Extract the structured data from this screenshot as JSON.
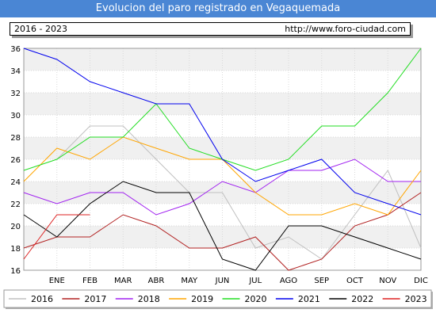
{
  "title": "Evolucion del paro registrado en Vegaquemada",
  "subtitle_left": "2016 - 2023",
  "subtitle_right": "http://www.foro-ciudad.com",
  "colors": {
    "title_bg": "#4a86d4",
    "band": "#f0f0f0",
    "grid": "#d9d9d9"
  },
  "chart_data": {
    "type": "line",
    "title": "Evolucion del paro registrado en Vegaquemada",
    "categories": [
      "",
      "ENE",
      "FEB",
      "MAR",
      "ABR",
      "MAY",
      "JUN",
      "JUL",
      "AGO",
      "SEP",
      "OCT",
      "NOV",
      "DIC"
    ],
    "ylim": [
      16,
      36
    ],
    "yticks": [
      16,
      18,
      20,
      22,
      24,
      26,
      28,
      30,
      32,
      34,
      36
    ],
    "grid": true,
    "legend_position": "bottom",
    "series": [
      {
        "name": "2016",
        "color": "#c0c0c0",
        "values": [
          null,
          26,
          29,
          29,
          26,
          23,
          23,
          18,
          19,
          17,
          21,
          25,
          18
        ]
      },
      {
        "name": "2017",
        "color": "#b22222",
        "values": [
          18,
          19,
          19,
          21,
          20,
          18,
          18,
          19,
          16,
          17,
          20,
          21,
          23
        ]
      },
      {
        "name": "2018",
        "color": "#a020f0",
        "values": [
          23,
          22,
          23,
          23,
          21,
          22,
          24,
          23,
          25,
          25,
          26,
          24,
          24
        ]
      },
      {
        "name": "2019",
        "color": "#ffa500",
        "values": [
          24,
          27,
          26,
          28,
          27,
          26,
          26,
          23,
          21,
          21,
          22,
          21,
          25
        ]
      },
      {
        "name": "2020",
        "color": "#22dd22",
        "values": [
          25,
          26,
          28,
          28,
          31,
          27,
          26,
          25,
          26,
          29,
          29,
          32,
          36
        ]
      },
      {
        "name": "2021",
        "color": "#0000ee",
        "values": [
          36,
          35,
          33,
          32,
          31,
          31,
          26,
          24,
          25,
          26,
          23,
          22,
          21
        ]
      },
      {
        "name": "2022",
        "color": "#000000",
        "values": [
          21,
          19,
          22,
          24,
          23,
          23,
          17,
          16,
          20,
          20,
          19,
          18,
          17
        ]
      },
      {
        "name": "2023",
        "color": "#dd2222",
        "values": [
          17,
          21,
          21,
          null,
          null,
          null,
          null,
          null,
          null,
          null,
          null,
          null,
          null
        ]
      }
    ]
  }
}
